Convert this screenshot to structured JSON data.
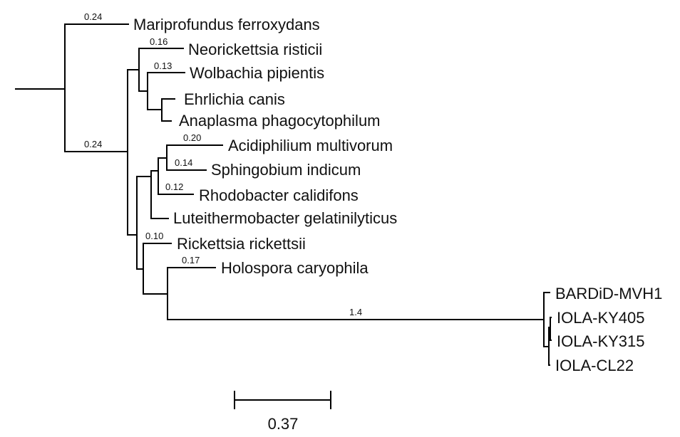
{
  "taxa": {
    "mariprofundus": "Mariprofundus ferroxydans",
    "neorickettsia": "Neorickettsia risticii",
    "wolbachia": "Wolbachia pipientis",
    "ehrlichia": "Ehrlichia canis",
    "anaplasma": "Anaplasma phagocytophilum",
    "acidiphilium": "Acidiphilium multivorum",
    "sphingobium": "Sphingobium indicum",
    "rhodobacter": "Rhodobacter calidifons",
    "luteithermobacter": "Luteithermobacter gelatinilyticus",
    "rickettsia": "Rickettsia rickettsii",
    "holospora": "Holospora caryophila",
    "bardid": "BARDiD-MVH1",
    "iola_ky405": "IOLA-KY405",
    "iola_ky315": "IOLA-KY315",
    "iola_cl22": "IOLA-CL22"
  },
  "branch_lengths": {
    "mariprofundus": "0.24",
    "ingroup": "0.24",
    "neorickettsia": "0.16",
    "wolbachia": "0.13",
    "acidiphilium": "0.20",
    "sphingobium": "0.14",
    "rhodobacter": "0.12",
    "rickettsia": "0.10",
    "holospora": "0.17",
    "iola_clade": "1.4"
  },
  "scale_bar": {
    "label": "0.37"
  }
}
